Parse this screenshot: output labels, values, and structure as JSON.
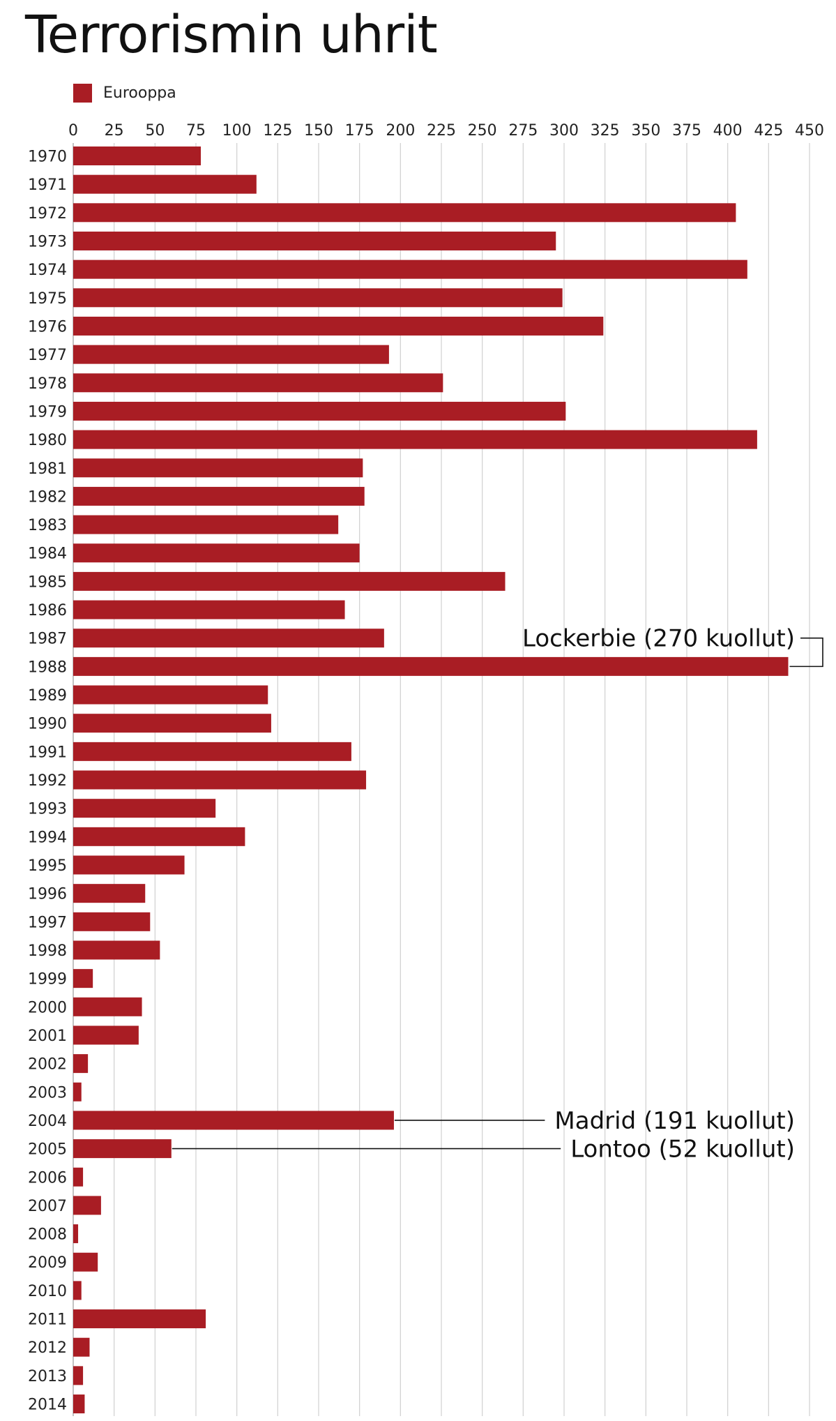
{
  "chart_data": {
    "type": "bar",
    "orientation": "horizontal",
    "title": "Terrorismin uhrit",
    "xlabel": "",
    "ylabel": "",
    "xlim": [
      0,
      450
    ],
    "x_ticks": [
      0,
      25,
      50,
      75,
      100,
      125,
      150,
      175,
      200,
      225,
      250,
      275,
      300,
      325,
      350,
      375,
      400,
      425,
      450
    ],
    "grid": true,
    "legend_position": "top-left",
    "colors": {
      "bar": "#a91d24",
      "grid": "#d0d0d0",
      "text": "#111111"
    },
    "categories": [
      "1970",
      "1971",
      "1972",
      "1973",
      "1974",
      "1975",
      "1976",
      "1977",
      "1978",
      "1979",
      "1980",
      "1981",
      "1982",
      "1983",
      "1984",
      "1985",
      "1986",
      "1987",
      "1988",
      "1989",
      "1990",
      "1991",
      "1992",
      "1993",
      "1994",
      "1995",
      "1996",
      "1997",
      "1998",
      "1999",
      "2000",
      "2001",
      "2002",
      "2003",
      "2004",
      "2005",
      "2006",
      "2007",
      "2008",
      "2009",
      "2010",
      "2011",
      "2012",
      "2013",
      "2014"
    ],
    "series": [
      {
        "name": "Eurooppa",
        "values": [
          78,
          112,
          405,
          295,
          412,
          299,
          324,
          193,
          226,
          301,
          418,
          177,
          178,
          162,
          175,
          264,
          166,
          190,
          437,
          119,
          121,
          170,
          179,
          87,
          105,
          68,
          44,
          47,
          53,
          12,
          42,
          40,
          9,
          5,
          196,
          60,
          6,
          17,
          3,
          15,
          5,
          81,
          10,
          6,
          7
        ]
      }
    ],
    "annotations": [
      {
        "category": "1988",
        "text": "Lockerbie (270 kuollut)"
      },
      {
        "category": "2004",
        "text": "Madrid (191 kuollut)"
      },
      {
        "category": "2005",
        "text": "Lontoo (52 kuollut)"
      }
    ]
  }
}
